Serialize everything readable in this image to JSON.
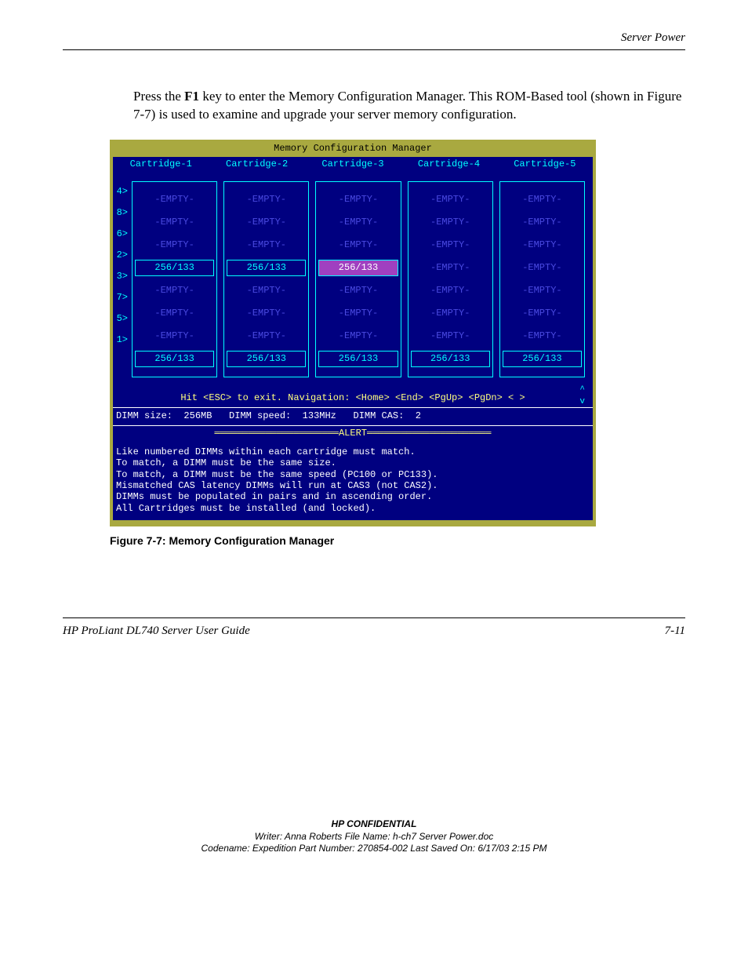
{
  "header": {
    "section": "Server Power"
  },
  "body": {
    "para": "Press the F1 key to enter the Memory Configuration Manager. This ROM-Based tool (shown in Figure 7-7) is used to examine and upgrade your server memory configuration.",
    "bold_key": "F1"
  },
  "terminal": {
    "title": "Memory Configuration Manager",
    "olive_bg": "#a9a940",
    "navy_bg": "#000080",
    "cyan": "#00ffff",
    "yellow": "#ffff80",
    "purple_hl": "#a040c0",
    "dim_blue": "#4a4ae0",
    "tabs": [
      "Cartridge-1",
      "Cartridge-2",
      "Cartridge-3",
      "Cartridge-4",
      "Cartridge-5"
    ],
    "row_labels": [
      "4>",
      "8>",
      "6>",
      "2>",
      "3>",
      "7>",
      "5>",
      "1>"
    ],
    "empty_text": "-EMPTY-",
    "pop_text": "256/133",
    "cartridges": [
      {
        "slots": [
          {
            "t": "e"
          },
          {
            "t": "e"
          },
          {
            "t": "e"
          },
          {
            "t": "p"
          },
          {
            "t": "e"
          },
          {
            "t": "e"
          },
          {
            "t": "e"
          },
          {
            "t": "p"
          }
        ]
      },
      {
        "slots": [
          {
            "t": "e"
          },
          {
            "t": "e"
          },
          {
            "t": "e"
          },
          {
            "t": "p"
          },
          {
            "t": "e"
          },
          {
            "t": "e"
          },
          {
            "t": "e"
          },
          {
            "t": "p"
          }
        ]
      },
      {
        "slots": [
          {
            "t": "e"
          },
          {
            "t": "e"
          },
          {
            "t": "e"
          },
          {
            "t": "p",
            "hl": true
          },
          {
            "t": "e"
          },
          {
            "t": "e"
          },
          {
            "t": "e"
          },
          {
            "t": "p"
          }
        ]
      },
      {
        "slots": [
          {
            "t": "e"
          },
          {
            "t": "e"
          },
          {
            "t": "e"
          },
          {
            "t": "e"
          },
          {
            "t": "e"
          },
          {
            "t": "e"
          },
          {
            "t": "e"
          },
          {
            "t": "p"
          }
        ]
      },
      {
        "slots": [
          {
            "t": "e"
          },
          {
            "t": "e"
          },
          {
            "t": "e"
          },
          {
            "t": "e"
          },
          {
            "t": "e"
          },
          {
            "t": "e"
          },
          {
            "t": "e"
          },
          {
            "t": "p"
          }
        ]
      }
    ],
    "nav_text": "Hit <ESC> to exit. Navigation: <Home> <End> <PgUp> <PgDn> <  >",
    "scroll_up": "^",
    "scroll_dn": "v",
    "info_label_size": "DIMM size:",
    "info_val_size": "256MB",
    "info_label_speed": "DIMM speed:",
    "info_val_speed": "133MHz",
    "info_label_cas": "DIMM CAS:",
    "info_val_cas": "2",
    "alert_label": "ALERT",
    "alert_lines": [
      "Like numbered DIMMs within each cartridge must match.",
      "To match, a DIMM must be the same size.",
      "To match, a DIMM must be the same speed (PC100 or PC133).",
      "Mismatched CAS latency DIMMs will run at CAS3 (not CAS2).",
      "DIMMs must be populated in pairs and in ascending order.",
      "All Cartridges must be installed (and locked)."
    ]
  },
  "caption": "Figure 7-7:  Memory Configuration Manager",
  "footer": {
    "left": "HP ProLiant DL740 Server User Guide",
    "right": "7-11"
  },
  "confidential": {
    "ttl": "HP CONFIDENTIAL",
    "l1": "Writer: Anna Roberts File Name: h-ch7 Server Power.doc",
    "l2": "Codename: Expedition Part Number: 270854-002 Last Saved On: 6/17/03 2:15 PM"
  }
}
